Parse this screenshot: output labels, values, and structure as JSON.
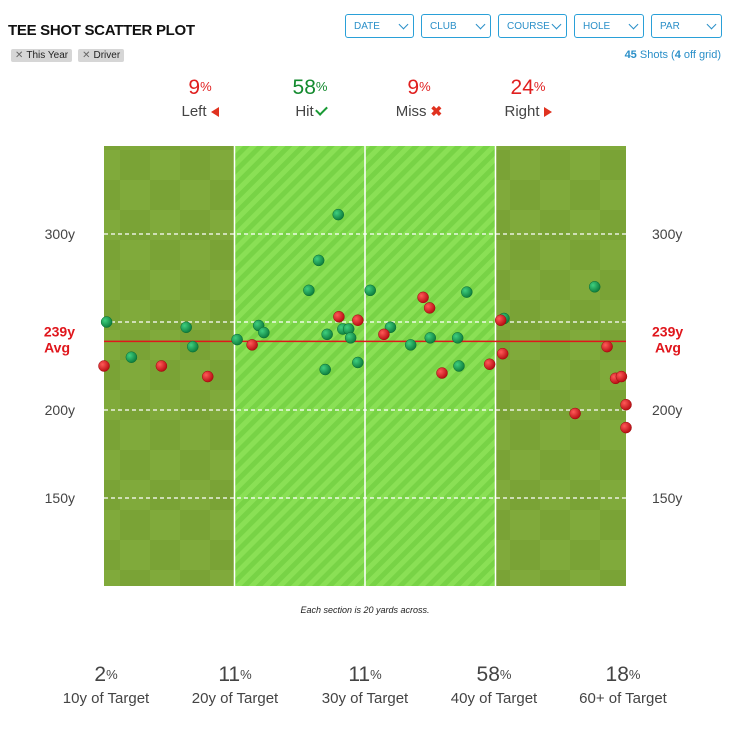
{
  "title": "TEE SHOT SCATTER PLOT",
  "filters": [
    "DATE",
    "CLUB",
    "COURSE",
    "HOLE",
    "PAR"
  ],
  "tags": [
    "This Year",
    "Driver"
  ],
  "shots": {
    "count": "45",
    "text_mid": " Shots (",
    "off_grid": "4",
    "text_end": " off grid)"
  },
  "top_stats": [
    {
      "pct": "9",
      "label": "Left",
      "color": "red",
      "icon": "left-arrow-icon"
    },
    {
      "pct": "58",
      "label": "Hit",
      "color": "green",
      "icon": "check-icon"
    },
    {
      "pct": "9",
      "label": "Miss",
      "color": "red",
      "icon": "cross-icon"
    },
    {
      "pct": "24",
      "label": "Right",
      "color": "red",
      "icon": "right-arrow-icon"
    }
  ],
  "percent_sign": "%",
  "note": "Each section is 20 yards across.",
  "bottom_stats": [
    {
      "pct": "2",
      "label": "10y of Target"
    },
    {
      "pct": "11",
      "label": "20y of Target"
    },
    {
      "pct": "11",
      "label": "30y of Target"
    },
    {
      "pct": "58",
      "label": "40y of Target"
    },
    {
      "pct": "18",
      "label": "60+ of Target"
    }
  ],
  "chart_data": {
    "type": "scatter",
    "x_unit": "yards from center",
    "xlim": [
      -40,
      40
    ],
    "ylim": [
      100,
      350
    ],
    "section_width_yards": 20,
    "y_ticks": [
      150,
      200,
      300
    ],
    "y_tick_labels": [
      "150y",
      "200y",
      "300y"
    ],
    "average": {
      "value": 239,
      "label_value": "239y",
      "label_text": "Avg"
    },
    "colors": {
      "hit": "#1a9a55",
      "miss": "#e0161c",
      "avg_line": "#e0161c",
      "rough": "#7aa336",
      "fairway": "#7fd84a"
    },
    "hit_points": [
      [
        -39.6,
        250
      ],
      [
        -35.8,
        230
      ],
      [
        -27.4,
        247
      ],
      [
        -26.4,
        236
      ],
      [
        -19.6,
        240
      ],
      [
        -16.3,
        248
      ],
      [
        -15.5,
        244
      ],
      [
        -8.6,
        268
      ],
      [
        -7.1,
        285
      ],
      [
        -6.1,
        223
      ],
      [
        -5.8,
        243
      ],
      [
        -4.1,
        311
      ],
      [
        -3.4,
        246
      ],
      [
        -2.5,
        246
      ],
      [
        -2.2,
        241
      ],
      [
        -1.1,
        227
      ],
      [
        0.8,
        268
      ],
      [
        3.9,
        247
      ],
      [
        7.0,
        237
      ],
      [
        10.0,
        241
      ],
      [
        14.2,
        241
      ],
      [
        14.4,
        225
      ],
      [
        15.6,
        267
      ],
      [
        21.3,
        252
      ],
      [
        35.2,
        270
      ]
    ],
    "miss_points": [
      [
        -40.0,
        225
      ],
      [
        -31.2,
        225
      ],
      [
        -24.1,
        219
      ],
      [
        -17.3,
        237
      ],
      [
        -4.0,
        253
      ],
      [
        -1.1,
        251
      ],
      [
        2.9,
        243
      ],
      [
        8.9,
        264
      ],
      [
        9.9,
        258
      ],
      [
        11.8,
        221
      ],
      [
        19.1,
        226
      ],
      [
        20.8,
        251
      ],
      [
        21.1,
        232
      ],
      [
        32.2,
        198
      ],
      [
        37.1,
        236
      ],
      [
        38.4,
        218
      ],
      [
        39.3,
        219
      ],
      [
        40.0,
        203
      ],
      [
        40.0,
        190
      ]
    ]
  }
}
